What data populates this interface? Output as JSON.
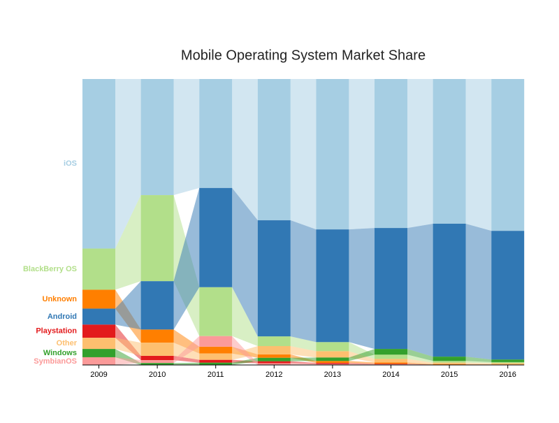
{
  "chart_data": {
    "type": "stacked-bar-flow",
    "title": "Mobile Operating System Market Share",
    "categories": [
      "2009",
      "2010",
      "2011",
      "2012",
      "2013",
      "2014",
      "2015",
      "2016"
    ],
    "series": [
      {
        "name": "iOS",
        "color": "#a6cee3",
        "values": [
          59.3,
          40.6,
          38.1,
          49.4,
          52.6,
          52.1,
          50.6,
          53.1
        ]
      },
      {
        "name": "BlackBerry OS",
        "color": "#b2df8a",
        "values": [
          14.4,
          30.1,
          17.1,
          3.4,
          3.2,
          1.5,
          0.6,
          0.4
        ]
      },
      {
        "name": "Unknown",
        "color": "#ff7f00",
        "values": [
          6.6,
          4.6,
          2.4,
          1.2,
          0.7,
          0.5,
          0.2,
          0.1
        ]
      },
      {
        "name": "Android",
        "color": "#3178b4",
        "values": [
          5.6,
          16.9,
          34.7,
          40.6,
          39.4,
          42.3,
          46.5,
          45.0
        ]
      },
      {
        "name": "Playstation",
        "color": "#e31a1c",
        "values": [
          4.6,
          1.5,
          1.0,
          0.7,
          0.4,
          0.2,
          0.05,
          0.05
        ]
      },
      {
        "name": "Other",
        "color": "#fdbf6f",
        "values": [
          3.9,
          4.6,
          2.2,
          2.9,
          2.2,
          1.2,
          0.5,
          0.4
        ]
      },
      {
        "name": "Windows",
        "color": "#33a02c",
        "values": [
          2.9,
          0.7,
          0.8,
          1.2,
          1.2,
          2.0,
          1.5,
          0.9
        ]
      },
      {
        "name": "SymbianOS",
        "color": "#fb9a99",
        "values": [
          2.7,
          1.0,
          3.7,
          0.6,
          0.3,
          0.2,
          0.05,
          0.05
        ]
      }
    ]
  }
}
